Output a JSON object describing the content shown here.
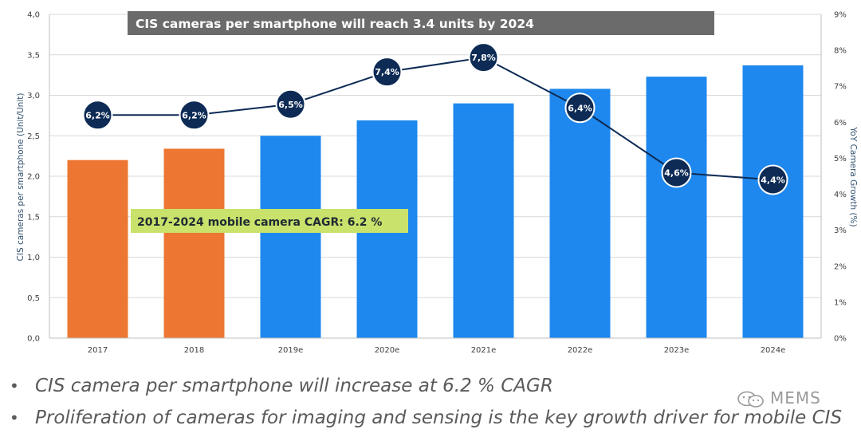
{
  "chart_data": {
    "type": "bar+line",
    "title": "CIS cameras per smartphone will reach 3.4 units by 2024",
    "annotation": "2017-2024 mobile camera CAGR: 6.2 %",
    "categories": [
      "2017",
      "2018",
      "2019e",
      "2020e",
      "2021e",
      "2022e",
      "2023e",
      "2024e"
    ],
    "bars": {
      "values": [
        2.2,
        2.34,
        2.5,
        2.69,
        2.9,
        3.08,
        3.23,
        3.37
      ],
      "colors": [
        "#ed7732",
        "#ed7732",
        "#1e88ee",
        "#1e88ee",
        "#1e88ee",
        "#1e88ee",
        "#1e88ee",
        "#1e88ee"
      ]
    },
    "line": {
      "values": [
        6.2,
        6.2,
        6.5,
        7.4,
        7.8,
        6.4,
        4.6,
        4.4
      ],
      "labels": [
        "6,2%",
        "6,2%",
        "6,5%",
        "7,4%",
        "7,8%",
        "6,4%",
        "4,6%",
        "4,4%"
      ],
      "color": "#0d2b55"
    },
    "ylabel": "CIS cameras per smartphone (Unit/Unit)",
    "y2label": "YoY Camera Growth (%)",
    "ylim": [
      0,
      4.0
    ],
    "y2lim": [
      0,
      9
    ],
    "yticks": [
      "0,0",
      "0,5",
      "1,0",
      "1,5",
      "2,0",
      "2,5",
      "3,0",
      "3,5",
      "4,0"
    ],
    "y2ticks": [
      "0%",
      "1%",
      "2%",
      "3%",
      "4%",
      "5%",
      "6%",
      "7%",
      "8%",
      "9%"
    ],
    "grid": true,
    "title_bg": "#6b6b6b",
    "annotation_bg": "#c8e26b"
  },
  "bullets": [
    "CIS camera per smartphone will increase at 6.2 % CAGR",
    "Proliferation of cameras for imaging and sensing is the key growth driver for mobile CIS"
  ],
  "watermark": "MEMS",
  "bullet_symbol": "•"
}
